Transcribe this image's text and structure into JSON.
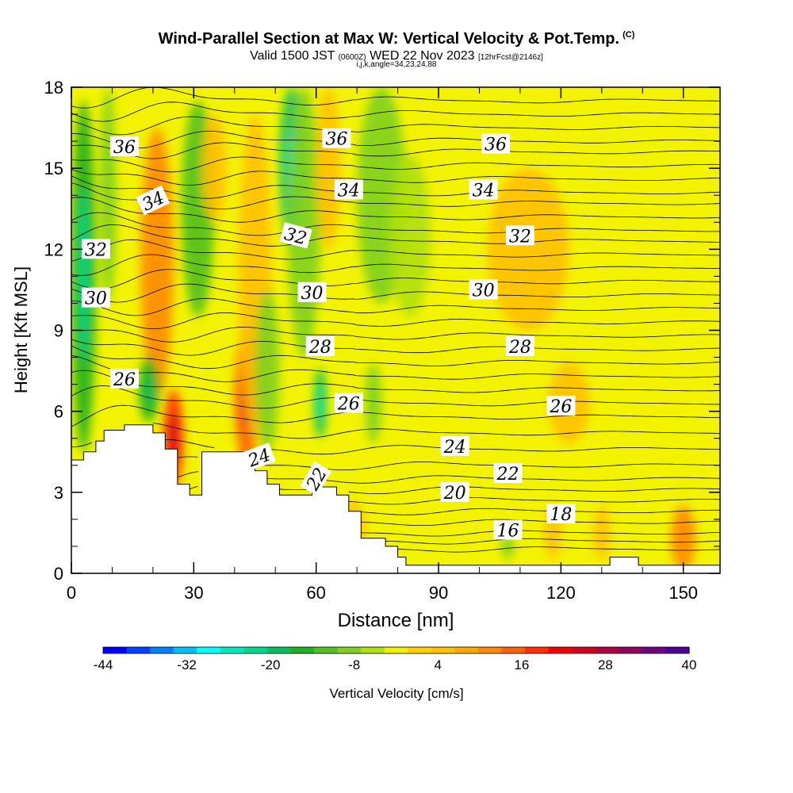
{
  "chart_data": {
    "type": "heatmap",
    "title": "Wind-Parallel Section at Max W: Vertical Velocity & Pot.Temp.",
    "title_mark": "(C)",
    "subtitle_valid": "Valid 1500 JST",
    "subtitle_utc": "(0600Z)",
    "subtitle_date": "WED 22 Nov 2023",
    "subtitle_fcst": "[12hrFcst@2146z]",
    "subtitle_ijk": "i,j,k,angle=34,23,24,88",
    "xlabel": "Distance [nm]",
    "ylabel": "Height [Kft MSL]",
    "xlim": [
      0,
      159
    ],
    "ylim": [
      0,
      18
    ],
    "xticks": [
      0,
      30,
      60,
      90,
      120,
      150
    ],
    "yticks": [
      0,
      3,
      6,
      9,
      12,
      15,
      18
    ],
    "colorbar": {
      "label": "Vertical Velocity [cm/s]",
      "min": -44,
      "max": 40,
      "step": 4,
      "tick_labels": [
        "-44",
        "-32",
        "-20",
        "-8",
        "4",
        "16",
        "28",
        "40"
      ],
      "colors": [
        "#0000ff",
        "#0040ff",
        "#0080ff",
        "#00c0ff",
        "#00ffff",
        "#00e8c0",
        "#00d890",
        "#00c060",
        "#20b020",
        "#50c020",
        "#80d020",
        "#b0e010",
        "#f0f000",
        "#ffd000",
        "#ffc000",
        "#ffa800",
        "#ff8800",
        "#ff6000",
        "#ff3000",
        "#f00000",
        "#d00020",
        "#b00040",
        "#900060",
        "#700080",
        "#500090"
      ]
    },
    "theta_contours_K": [
      16,
      18,
      20,
      22,
      24,
      26,
      28,
      30,
      32,
      34,
      36
    ],
    "contour_labels": [
      {
        "text": "36",
        "x": 13,
        "z": 15.8,
        "rot": 0
      },
      {
        "text": "34",
        "x": 20,
        "z": 13.8,
        "rot": -25
      },
      {
        "text": "32",
        "x": 6,
        "z": 12.0,
        "rot": 0
      },
      {
        "text": "30",
        "x": 6,
        "z": 10.2,
        "rot": 0
      },
      {
        "text": "26",
        "x": 13,
        "z": 7.2,
        "rot": 0
      },
      {
        "text": "36",
        "x": 65,
        "z": 16.1,
        "rot": 0
      },
      {
        "text": "34",
        "x": 68,
        "z": 14.2,
        "rot": 0
      },
      {
        "text": "32",
        "x": 55,
        "z": 12.5,
        "rot": 15
      },
      {
        "text": "30",
        "x": 59,
        "z": 10.4,
        "rot": 0
      },
      {
        "text": "28",
        "x": 61,
        "z": 8.4,
        "rot": 0
      },
      {
        "text": "26",
        "x": 68,
        "z": 6.3,
        "rot": 0
      },
      {
        "text": "24",
        "x": 46,
        "z": 4.3,
        "rot": -20
      },
      {
        "text": "22",
        "x": 60,
        "z": 3.5,
        "rot": -60
      },
      {
        "text": "36",
        "x": 104,
        "z": 15.9,
        "rot": 0
      },
      {
        "text": "34",
        "x": 101,
        "z": 14.2,
        "rot": 0
      },
      {
        "text": "32",
        "x": 110,
        "z": 12.5,
        "rot": 0
      },
      {
        "text": "30",
        "x": 101,
        "z": 10.5,
        "rot": 0
      },
      {
        "text": "28",
        "x": 110,
        "z": 8.4,
        "rot": 0
      },
      {
        "text": "26",
        "x": 120,
        "z": 6.2,
        "rot": 0
      },
      {
        "text": "24",
        "x": 94,
        "z": 4.7,
        "rot": 0
      },
      {
        "text": "22",
        "x": 107,
        "z": 3.7,
        "rot": 0
      },
      {
        "text": "20",
        "x": 94,
        "z": 3.0,
        "rot": 0
      },
      {
        "text": "18",
        "x": 120,
        "z": 2.2,
        "rot": 0
      },
      {
        "text": "16",
        "x": 107,
        "z": 1.6,
        "rot": 0
      }
    ],
    "terrain_profile": {
      "x": [
        0,
        3,
        3,
        6,
        6,
        8,
        8,
        13,
        13,
        20,
        20,
        23,
        23,
        26,
        26,
        29,
        29,
        30,
        30,
        32,
        32,
        37,
        37,
        45,
        45,
        48,
        48,
        51,
        51,
        59,
        59,
        65,
        65,
        68,
        68,
        71,
        71,
        77,
        77,
        80,
        80,
        82,
        82,
        87,
        87,
        90,
        90,
        132,
        132,
        139,
        139,
        159
      ],
      "z": [
        4.2,
        4.2,
        4.5,
        4.5,
        4.9,
        4.9,
        5.3,
        5.3,
        5.5,
        5.5,
        5.2,
        5.2,
        4.6,
        4.6,
        3.3,
        3.3,
        2.9,
        2.9,
        2.9,
        2.9,
        4.5,
        4.5,
        4.5,
        4.5,
        3.8,
        3.8,
        3.3,
        3.3,
        2.9,
        2.9,
        3.2,
        3.2,
        2.9,
        2.9,
        2.3,
        2.3,
        1.3,
        1.3,
        1.0,
        1.0,
        0.6,
        0.6,
        0.3,
        0.3,
        0.3,
        0.3,
        0.3,
        0.3,
        0.6,
        0.6,
        0.3,
        0.3
      ]
    },
    "w_features_cms": [
      {
        "x": 3,
        "z": 11,
        "rx": 3,
        "rz": 6.5,
        "w": -16
      },
      {
        "x": 9,
        "z": 14,
        "rx": 2,
        "rz": 4,
        "w": -8
      },
      {
        "x": 21,
        "z": 11.5,
        "rx": 4,
        "rz": 5,
        "w": 10
      },
      {
        "x": 25,
        "z": 5,
        "rx": 2.5,
        "rz": 1.8,
        "w": 18
      },
      {
        "x": 19,
        "z": 6.8,
        "rx": 2.5,
        "rz": 1.2,
        "w": -14
      },
      {
        "x": 31,
        "z": 13.5,
        "rx": 4,
        "rz": 4,
        "w": -12
      },
      {
        "x": 35,
        "z": 15,
        "rx": 3,
        "rz": 2,
        "w": 6
      },
      {
        "x": 43,
        "z": 6.5,
        "rx": 3,
        "rz": 2.5,
        "w": 16
      },
      {
        "x": 45,
        "z": 11,
        "rx": 4,
        "rz": 6,
        "w": 6
      },
      {
        "x": 48,
        "z": 7.5,
        "rx": 3,
        "rz": 3,
        "w": -10
      },
      {
        "x": 54,
        "z": 15,
        "rx": 3,
        "rz": 3,
        "w": -18
      },
      {
        "x": 57,
        "z": 13,
        "rx": 4,
        "rz": 5,
        "w": -10
      },
      {
        "x": 61,
        "z": 6.3,
        "rx": 1.5,
        "rz": 1.3,
        "w": -18
      },
      {
        "x": 63,
        "z": 15,
        "rx": 3,
        "rz": 3,
        "w": 6
      },
      {
        "x": 76,
        "z": 14,
        "rx": 6,
        "rz": 4,
        "w": -8
      },
      {
        "x": 74,
        "z": 6.3,
        "rx": 2,
        "rz": 1.5,
        "w": -8
      },
      {
        "x": 83,
        "z": 12.5,
        "rx": 5,
        "rz": 3,
        "w": -6
      },
      {
        "x": 112,
        "z": 12,
        "rx": 10,
        "rz": 3,
        "w": 4
      },
      {
        "x": 122,
        "z": 6.3,
        "rx": 5,
        "rz": 1.5,
        "w": 4
      },
      {
        "x": 69,
        "z": 1.5,
        "rx": 3,
        "rz": 1.2,
        "w": 6
      },
      {
        "x": 118,
        "z": 1.5,
        "rx": 2,
        "rz": 1.0,
        "w": 6
      },
      {
        "x": 130,
        "z": 1.5,
        "rx": 2,
        "rz": 1.0,
        "w": 6
      },
      {
        "x": 150,
        "z": 1.3,
        "rx": 3,
        "rz": 1.2,
        "w": 10
      },
      {
        "x": 107,
        "z": 1.0,
        "rx": 1.5,
        "rz": 0.5,
        "w": -8
      }
    ]
  }
}
